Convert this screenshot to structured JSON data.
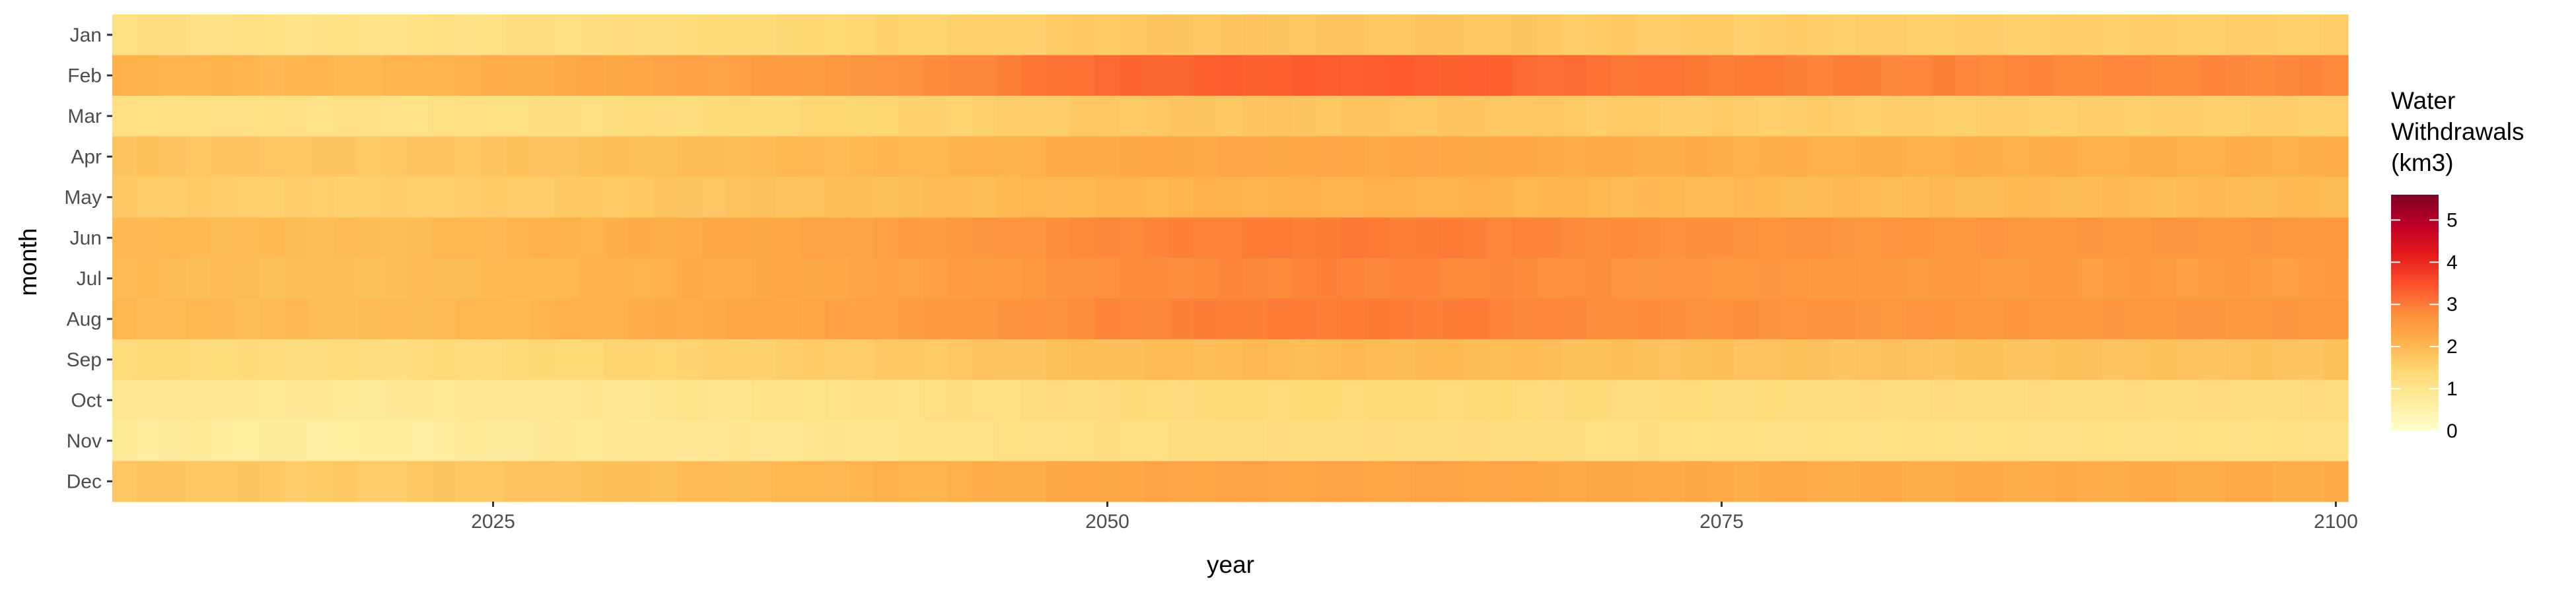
{
  "chart_data": {
    "type": "heatmap",
    "title": "",
    "xlabel": "year",
    "ylabel": "month",
    "x_start": 2010,
    "x_end": 2100,
    "x_ticks": [
      2025,
      2050,
      2075,
      2100
    ],
    "months": [
      "Jan",
      "Feb",
      "Mar",
      "Apr",
      "May",
      "Jun",
      "Jul",
      "Aug",
      "Sep",
      "Oct",
      "Nov",
      "Dec"
    ],
    "profile_years": [
      2010,
      2020,
      2030,
      2040,
      2045,
      2050,
      2055,
      2060,
      2065,
      2070,
      2080,
      2090,
      2100
    ],
    "values_by_month": {
      "Jan": [
        1.2,
        1.1,
        1.25,
        1.45,
        1.55,
        1.7,
        1.75,
        1.75,
        1.75,
        1.65,
        1.6,
        1.6,
        1.6
      ],
      "Feb": [
        2.1,
        2.0,
        2.3,
        2.6,
        2.9,
        3.2,
        3.3,
        3.35,
        3.3,
        3.1,
        2.9,
        2.85,
        2.85
      ],
      "Mar": [
        1.2,
        1.1,
        1.25,
        1.45,
        1.55,
        1.7,
        1.75,
        1.75,
        1.75,
        1.65,
        1.6,
        1.6,
        1.6
      ],
      "Apr": [
        1.8,
        1.7,
        1.85,
        2.0,
        2.1,
        2.25,
        2.3,
        2.3,
        2.3,
        2.2,
        2.15,
        2.15,
        2.15
      ],
      "May": [
        1.65,
        1.55,
        1.7,
        1.85,
        1.95,
        2.05,
        2.1,
        2.1,
        2.1,
        2.0,
        1.95,
        1.95,
        1.95
      ],
      "Jun": [
        2.0,
        1.9,
        2.15,
        2.4,
        2.6,
        2.85,
        2.95,
        3.0,
        2.95,
        2.8,
        2.65,
        2.6,
        2.6
      ],
      "Jul": [
        1.95,
        1.85,
        2.1,
        2.35,
        2.5,
        2.75,
        2.85,
        2.9,
        2.85,
        2.7,
        2.55,
        2.5,
        2.5
      ],
      "Aug": [
        2.0,
        1.9,
        2.15,
        2.4,
        2.6,
        2.85,
        2.95,
        3.0,
        2.95,
        2.8,
        2.65,
        2.6,
        2.6
      ],
      "Sep": [
        1.35,
        1.25,
        1.45,
        1.65,
        1.75,
        1.9,
        1.95,
        1.95,
        1.95,
        1.85,
        1.8,
        1.8,
        1.8
      ],
      "Oct": [
        0.9,
        0.8,
        0.95,
        1.1,
        1.2,
        1.3,
        1.35,
        1.35,
        1.35,
        1.3,
        1.25,
        1.25,
        1.25
      ],
      "Nov": [
        0.8,
        0.7,
        0.85,
        1.0,
        1.1,
        1.2,
        1.25,
        1.25,
        1.25,
        1.2,
        1.15,
        1.15,
        1.15
      ],
      "Dec": [
        1.75,
        1.65,
        1.85,
        2.05,
        2.15,
        2.3,
        2.35,
        2.35,
        2.35,
        2.25,
        2.2,
        2.2,
        2.2
      ]
    },
    "legend": {
      "title_lines": [
        "Water",
        "Withdrawals",
        "(km3)"
      ],
      "min": 0,
      "max": 5.6,
      "ticks": [
        0,
        1,
        2,
        3,
        4,
        5
      ]
    },
    "color_scale": [
      "#ffffcc",
      "#ffeda0",
      "#fed976",
      "#feb24c",
      "#fd8d3c",
      "#fc4e2a",
      "#e31a1c",
      "#bd0026",
      "#800026"
    ],
    "grid": false
  }
}
